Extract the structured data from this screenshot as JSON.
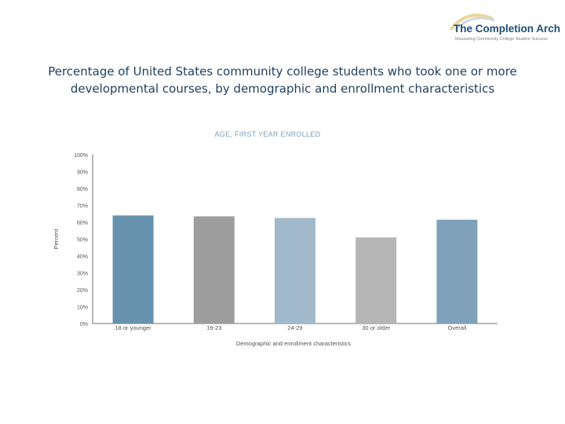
{
  "logo": {
    "name": "The Completion Arch",
    "tagline": "Measuring Community College Student Success"
  },
  "title": {
    "line1": "Percentage of United States community college students who took one or more",
    "line2": "developmental courses, by demographic and enrollment characteristics"
  },
  "chart_data": {
    "type": "bar",
    "title": "AGE, FIRST YEAR ENROLLED",
    "xlabel": "Demographic and enrollment characteristics",
    "ylabel": "Percent",
    "categories": [
      "18 or younger",
      "19-23",
      "24-29",
      "30 or older",
      "Overall"
    ],
    "values": [
      64,
      63.5,
      62.5,
      51,
      61.5
    ],
    "ylim": [
      0,
      100
    ],
    "yticks": [
      "0%",
      "10%",
      "20%",
      "30%",
      "40%",
      "50%",
      "60%",
      "70%",
      "80%",
      "90%",
      "100%"
    ],
    "grid": false,
    "colors": [
      "#6692ae",
      "#9e9e9e",
      "#a2b9cb",
      "#b5b5b5",
      "#7fa2ba"
    ]
  }
}
